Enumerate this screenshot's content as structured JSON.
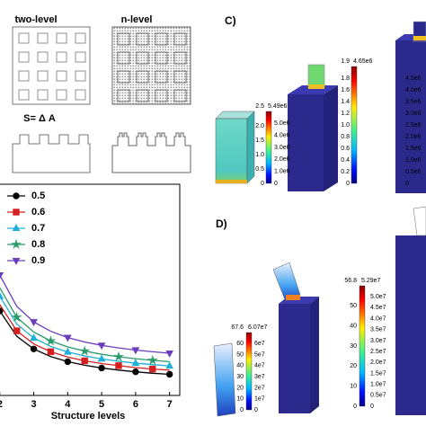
{
  "panel_a": {
    "two_level": "two-level",
    "n_level": "n-level",
    "formula": "S= Δ A"
  },
  "chart_data": {
    "type": "line",
    "xlabel": "Structure levels",
    "xlim": [
      1.98,
      7.3
    ],
    "xticks": [
      2,
      3,
      4,
      5,
      6,
      7
    ],
    "ylim": [
      0,
      100
    ],
    "legend": "upper left",
    "series": [
      {
        "name": "0.5",
        "color": "#000000",
        "marker": "circle",
        "x": [
          2,
          2.5,
          3,
          3.5,
          4,
          4.5,
          5,
          5.5,
          6,
          6.5,
          7
        ],
        "values": [
          40,
          28,
          22,
          18.4,
          16,
          14.3,
          13,
          12,
          11.2,
          10.5,
          10
        ]
      },
      {
        "name": "0.6",
        "color": "#d42020",
        "marker": "square",
        "x": [
          2,
          2.5,
          3,
          3.5,
          4,
          4.5,
          5,
          5.5,
          6,
          6.5,
          7
        ],
        "values": [
          43,
          30.6,
          24.4,
          20.7,
          18.2,
          16.4,
          15.1,
          14.1,
          13.2,
          12.5,
          12
        ]
      },
      {
        "name": "0.7",
        "color": "#1fb0d8",
        "marker": "triangle",
        "x": [
          2,
          2.5,
          3,
          3.5,
          4,
          4.5,
          5,
          5.5,
          6,
          6.5,
          7
        ],
        "values": [
          47,
          33.8,
          27.2,
          23.2,
          20.6,
          18.7,
          17.3,
          16.2,
          15.3,
          14.6,
          14
        ]
      },
      {
        "name": "0.8",
        "color": "#2a9a68",
        "marker": "star",
        "x": [
          2,
          2.5,
          3,
          3.5,
          4,
          4.5,
          5,
          5.5,
          6,
          6.5,
          7
        ],
        "values": [
          51,
          37,
          30,
          25.8,
          23,
          21,
          19.5,
          18.3,
          17.4,
          16.6,
          16
        ]
      },
      {
        "name": "0.9",
        "color": "#6a3dbd",
        "marker": "down",
        "x": [
          2,
          2.5,
          3,
          3.5,
          4,
          4.5,
          5,
          5.5,
          6,
          6.5,
          7
        ],
        "values": [
          57,
          42.2,
          34.8,
          30.4,
          27.4,
          25.3,
          23.7,
          22.5,
          21.5,
          20.7,
          20
        ]
      }
    ]
  },
  "panel_c": {
    "label": "C)",
    "colorbars": [
      {
        "left": [
          "2.5",
          "2.0",
          "1.5",
          "1.0",
          "0.5",
          "0"
        ],
        "right": [
          "5.49e6",
          "5.0e6",
          "4.0e6",
          "3.0e6",
          "2.0e6",
          "1.0e6",
          "0"
        ]
      },
      {
        "left": [
          "1.9",
          "1.8",
          "1.6",
          "1.4",
          "1.2",
          "1.0",
          "0.8",
          "0.6",
          "0.4",
          "0.2",
          "0"
        ],
        "right": [
          "4.65e6",
          "4.5e6",
          "4.0e6",
          "3.5e6",
          "3.0e6",
          "2.5e6",
          "2.0e6",
          "1.5e6",
          "1.0e6",
          "0.5e6",
          "0"
        ]
      }
    ]
  },
  "panel_d": {
    "label": "D)",
    "colorbars": [
      {
        "left": [
          "67.6",
          "60",
          "50",
          "40",
          "30",
          "20",
          "10",
          "0"
        ],
        "right": [
          "6.07e7",
          "6e7",
          "5e7",
          "4e7",
          "3e7",
          "2e7",
          "1e7",
          "0"
        ]
      },
      {
        "left": [
          "56.8",
          "50",
          "40",
          "30",
          "20",
          "10",
          "0"
        ],
        "right": [
          "5.29e7",
          "5.0e7",
          "4.5e7",
          "4.0e7",
          "3.5e7",
          "3.0e7",
          "2.5e7",
          "2.0e7",
          "1.5e7",
          "1.0e7",
          "0.5e7",
          "0"
        ]
      }
    ]
  }
}
